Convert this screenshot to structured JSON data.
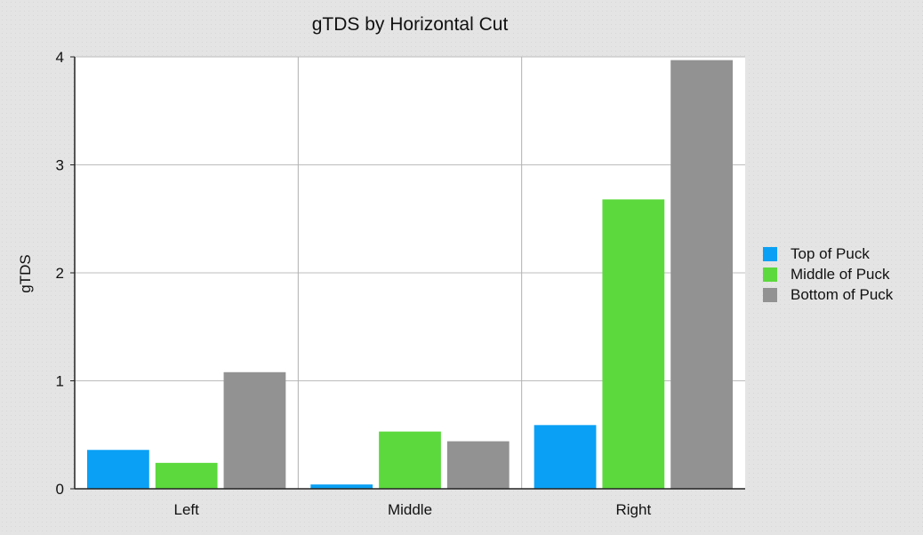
{
  "chart_data": {
    "type": "bar",
    "title": "gTDS by Horizontal Cut",
    "xlabel": "",
    "ylabel": "gTDS",
    "ylim": [
      0,
      4
    ],
    "yticks": [
      "0",
      "1",
      "2",
      "3",
      "4"
    ],
    "categories": [
      "Left",
      "Middle",
      "Right"
    ],
    "series": [
      {
        "name": "Top of Puck",
        "color": "#0aa0f5",
        "values": [
          0.36,
          0.04,
          0.59
        ]
      },
      {
        "name": "Middle of Puck",
        "color": "#5cd93d",
        "values": [
          0.24,
          0.53,
          2.68
        ]
      },
      {
        "name": "Bottom of Puck",
        "color": "#929292",
        "values": [
          1.08,
          0.44,
          3.97
        ]
      }
    ],
    "grid": true,
    "legend_position": "right"
  }
}
